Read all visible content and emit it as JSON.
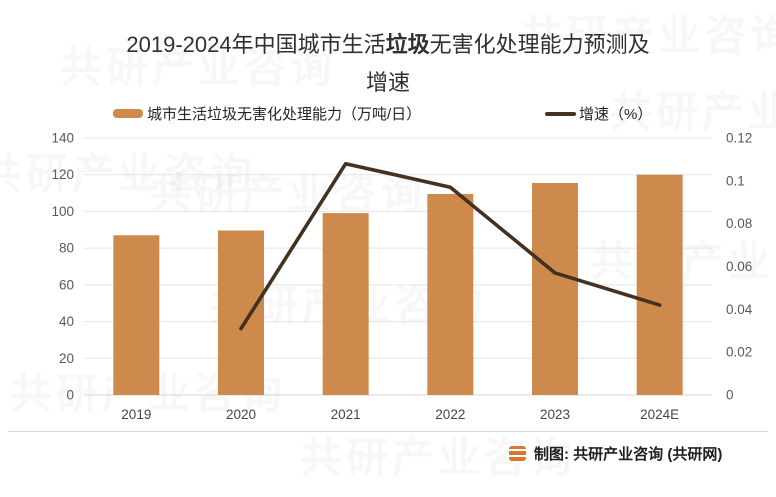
{
  "title": {
    "line1_prefix": "2019-2024年中国城市生活",
    "line1_bold": "垃圾",
    "line1_suffix": "无害化处理能力预测及",
    "line2": "增速"
  },
  "legend": {
    "capacity_label": "城市生活垃圾无害化处理能力（万吨/日）",
    "growth_label": "增速（%）"
  },
  "footer": {
    "credit": "制图: 共研产业咨询 (共研网)"
  },
  "watermark": {
    "text": "共研产业咨询"
  },
  "colors": {
    "bar": "#CE8A4C",
    "line": "#44311F",
    "grid": "#E4E4E4",
    "grid_zero": "#D6D6D6",
    "axis_text": "#595959",
    "title_text": "#303030",
    "divider": "#DADADA",
    "logo": "#D9772F"
  },
  "chart_data": {
    "type": "combo (bar + line)",
    "title": "2019-2024年中国城市生活垃圾无害化处理能力预测及增速",
    "categories": [
      "2019",
      "2020",
      "2021",
      "2022",
      "2023",
      "2024E"
    ],
    "series": [
      {
        "name": "城市生活垃圾无害化处理能力（万吨/日）",
        "type": "bar",
        "axis": "left",
        "color": "#CE8A4C",
        "values": [
          87,
          89.6,
          99.1,
          109.5,
          115.5,
          120
        ]
      },
      {
        "name": "增速（%）",
        "type": "line",
        "axis": "right",
        "color": "#44311F",
        "values": [
          null,
          0.031,
          0.108,
          0.097,
          0.057,
          0.042
        ]
      }
    ],
    "left_axis": {
      "min": 0,
      "max": 140,
      "ticks": [
        "0",
        "20",
        "40",
        "60",
        "80",
        "100",
        "120",
        "140"
      ]
    },
    "right_axis": {
      "min": 0,
      "max": 0.12,
      "ticks": [
        "0",
        "0.02",
        "0.04",
        "0.06",
        "0.08",
        "0.1",
        "0.12"
      ]
    },
    "grid": true,
    "legend_position": "top"
  }
}
